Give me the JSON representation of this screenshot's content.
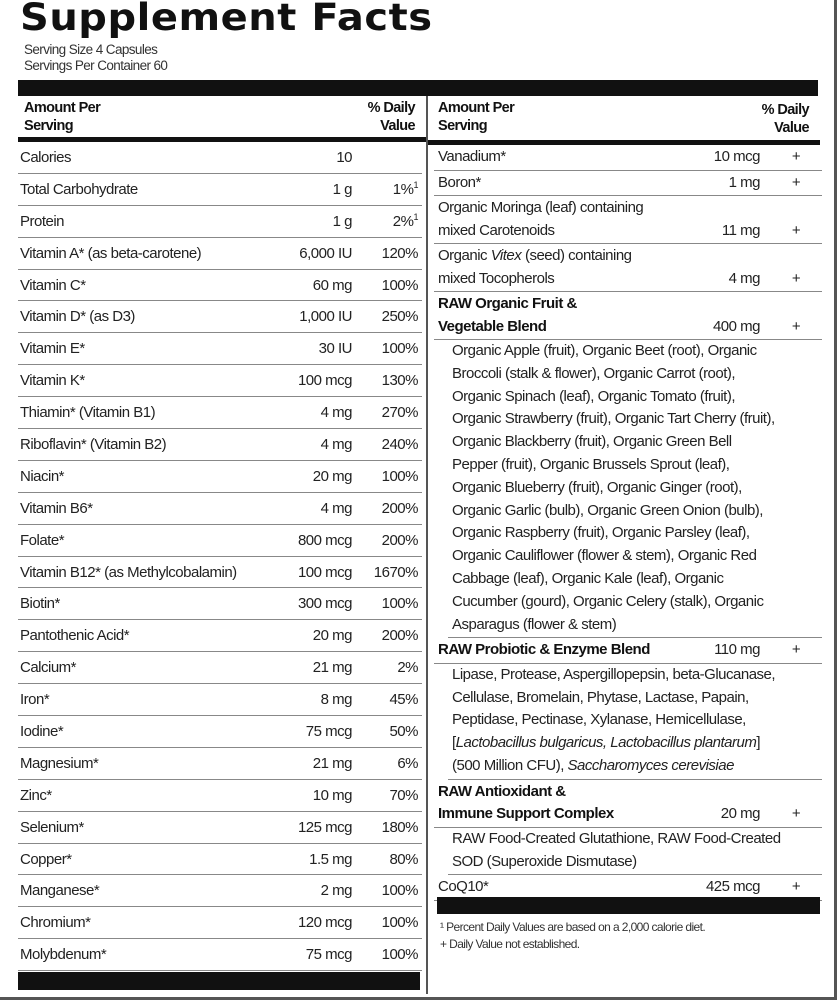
{
  "title": "Supplement Facts",
  "serving_size": "Serving Size 4 Capsules",
  "servings_per_container": "Servings Per Container 60",
  "header": {
    "amount_line1": "Amount Per",
    "amount_line2": "Serving",
    "dv_line1": "% Daily",
    "dv_line2": "Value"
  },
  "left_rows": [
    {
      "name": "Calories",
      "amount": "10",
      "dv": ""
    },
    {
      "name": "Total Carbohydrate",
      "amount": "1 g",
      "dv": "1%",
      "note": "1"
    },
    {
      "name": "Protein",
      "amount": "1 g",
      "dv": "2%",
      "note": "1"
    },
    {
      "name": "Vitamin A* (as beta-carotene)",
      "amount": "6,000 IU",
      "dv": "120%"
    },
    {
      "name": "Vitamin C*",
      "amount": "60 mg",
      "dv": "100%"
    },
    {
      "name": "Vitamin D* (as D3)",
      "amount": "1,000 IU",
      "dv": "250%"
    },
    {
      "name": "Vitamin E*",
      "amount": "30 IU",
      "dv": "100%"
    },
    {
      "name": "Vitamin K*",
      "amount": "100 mcg",
      "dv": "130%"
    },
    {
      "name": "Thiamin* (Vitamin B1)",
      "amount": "4 mg",
      "dv": "270%"
    },
    {
      "name": "Riboflavin* (Vitamin B2)",
      "amount": "4 mg",
      "dv": "240%"
    },
    {
      "name": "Niacin*",
      "amount": "20 mg",
      "dv": "100%"
    },
    {
      "name": "Vitamin B6*",
      "amount": "4 mg",
      "dv": "200%"
    },
    {
      "name": "Folate*",
      "amount": "800 mcg",
      "dv": "200%"
    },
    {
      "name": "Vitamin B12* (as Methylcobalamin)",
      "amount": "100 mcg",
      "dv": "1670%"
    },
    {
      "name": "Biotin*",
      "amount": "300 mcg",
      "dv": "100%"
    },
    {
      "name": "Pantothenic Acid*",
      "amount": "20 mg",
      "dv": "200%"
    },
    {
      "name": "Calcium*",
      "amount": "21 mg",
      "dv": "2%"
    },
    {
      "name": "Iron*",
      "amount": "8 mg",
      "dv": "45%"
    },
    {
      "name": "Iodine*",
      "amount": "75 mcg",
      "dv": "50%"
    },
    {
      "name": "Magnesium*",
      "amount": "21 mg",
      "dv": "6%"
    },
    {
      "name": "Zinc*",
      "amount": "10 mg",
      "dv": "70%"
    },
    {
      "name": "Selenium*",
      "amount": "125 mcg",
      "dv": "180%"
    },
    {
      "name": "Copper*",
      "amount": "1.5 mg",
      "dv": "80%"
    },
    {
      "name": "Manganese*",
      "amount": "2 mg",
      "dv": "100%"
    },
    {
      "name": "Chromium*",
      "amount": "120 mcg",
      "dv": "100%"
    },
    {
      "name": "Molybdenum*",
      "amount": "75 mcg",
      "dv": "100%"
    }
  ],
  "right_items": [
    {
      "type": "row",
      "lines": [
        [
          {
            "t": "Vanadium*"
          }
        ]
      ],
      "amount": "10 mcg",
      "dv": "+"
    },
    {
      "type": "row",
      "lines": [
        [
          {
            "t": "Boron*"
          }
        ]
      ],
      "amount": "1 mg",
      "dv": "+"
    },
    {
      "type": "row",
      "lines": [
        [
          {
            "t": "Organic Moringa (leaf) containing"
          }
        ],
        [
          {
            "t": "mixed Carotenoids"
          }
        ]
      ],
      "amount": "11 mg",
      "dv": "+"
    },
    {
      "type": "row",
      "lines": [
        [
          {
            "t": "Organic "
          },
          {
            "t": "Vitex",
            "i": true
          },
          {
            "t": " (seed) containing"
          }
        ],
        [
          {
            "t": "mixed Tocopherols"
          }
        ]
      ],
      "amount": "4 mg",
      "dv": "+"
    },
    {
      "type": "row",
      "bold": true,
      "lines": [
        [
          {
            "t": "RAW Organic Fruit &"
          }
        ],
        [
          {
            "t": "Vegetable Blend"
          }
        ]
      ],
      "amount": "400 mg",
      "dv": "+"
    },
    {
      "type": "text",
      "lines": [
        [
          {
            "t": "Organic Apple (fruit), Organic Beet (root), Organic"
          }
        ],
        [
          {
            "t": "Broccoli (stalk & flower), Organic Carrot (root),"
          }
        ],
        [
          {
            "t": "Organic Spinach (leaf), Organic Tomato (fruit),"
          }
        ],
        [
          {
            "t": "Organic Strawberry (fruit), Organic Tart Cherry (fruit),"
          }
        ],
        [
          {
            "t": "Organic Blackberry (fruit), Organic Green Bell"
          }
        ],
        [
          {
            "t": "Pepper (fruit), Organic Brussels Sprout (leaf),"
          }
        ],
        [
          {
            "t": "Organic Blueberry (fruit), Organic Ginger (root),"
          }
        ],
        [
          {
            "t": "Organic Garlic (bulb), Organic Green Onion (bulb),"
          }
        ],
        [
          {
            "t": "Organic Raspberry (fruit), Organic Parsley (leaf),"
          }
        ],
        [
          {
            "t": "Organic Cauliflower (flower & stem), Organic Red"
          }
        ],
        [
          {
            "t": "Cabbage (leaf), Organic Kale (leaf), Organic"
          }
        ],
        [
          {
            "t": "Cucumber (gourd), Organic Celery (stalk), Organic"
          }
        ],
        [
          {
            "t": "Asparagus (flower & stem)"
          }
        ]
      ]
    },
    {
      "type": "row",
      "bold": true,
      "lines": [
        [
          {
            "t": "RAW Probiotic & Enzyme Blend"
          }
        ]
      ],
      "amount": "110 mg",
      "dv": "+"
    },
    {
      "type": "text",
      "lines": [
        [
          {
            "t": "Lipase, Protease, Aspergillopepsin, beta-Glucanase,"
          }
        ],
        [
          {
            "t": "Cellulase, Bromelain, Phytase, Lactase, Papain,"
          }
        ],
        [
          {
            "t": "Peptidase, Pectinase, Xylanase, Hemicellulase,"
          }
        ],
        [
          {
            "t": "["
          },
          {
            "t": "Lactobacillus bulgaricus, Lactobacillus plantarum",
            "i": true
          },
          {
            "t": "]"
          }
        ],
        [
          {
            "t": "(500 Million CFU), "
          },
          {
            "t": "Saccharomyces cerevisiae",
            "i": true
          }
        ]
      ]
    },
    {
      "type": "row",
      "bold": true,
      "lines": [
        [
          {
            "t": "RAW Antioxidant &"
          }
        ],
        [
          {
            "t": "Immune Support Complex"
          }
        ]
      ],
      "amount": "20 mg",
      "dv": "+"
    },
    {
      "type": "text",
      "lines": [
        [
          {
            "t": "RAW Food-Created Glutathione, RAW Food-Created"
          }
        ],
        [
          {
            "t": "SOD (Superoxide Dismutase)"
          }
        ]
      ]
    },
    {
      "type": "row",
      "lines": [
        [
          {
            "t": "CoQ10*"
          }
        ]
      ],
      "amount": "425 mcg",
      "dv": "+"
    }
  ],
  "footnotes": {
    "percent": "¹ Percent Daily Values are based on a 2,000 calorie diet.",
    "plus": "+ Daily Value not established."
  }
}
